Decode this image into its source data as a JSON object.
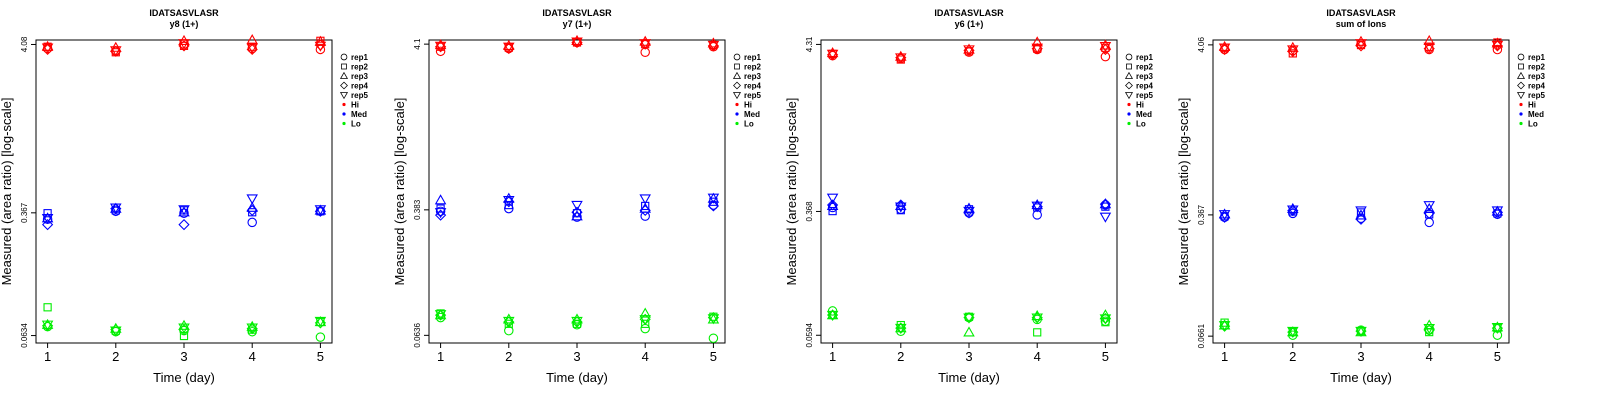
{
  "colors": {
    "Hi": "#ff0000",
    "Med": "#0000ff",
    "Lo": "#00ee00"
  },
  "legend": {
    "position": "right",
    "reps": [
      {
        "label": "rep1",
        "shape": "circle"
      },
      {
        "label": "rep2",
        "shape": "square"
      },
      {
        "label": "rep3",
        "shape": "triangle-up"
      },
      {
        "label": "rep4",
        "shape": "diamond"
      },
      {
        "label": "rep5",
        "shape": "triangle-down"
      }
    ],
    "levels": [
      {
        "label": "Hi",
        "color": "#ff0000"
      },
      {
        "label": "Med",
        "color": "#0000ff"
      },
      {
        "label": "Lo",
        "color": "#00ee00"
      }
    ]
  },
  "chart_data": [
    {
      "type": "scatter",
      "title": "IDATSASVLASR",
      "subtitle": "y8 (1+)",
      "xlabel": "Time (day)",
      "ylabel": "Measured (area ratio) [log-scale]",
      "yscale": "log",
      "x": [
        1,
        2,
        3,
        4,
        5
      ],
      "yticks": [
        "0.0634",
        "0.367",
        "4.08"
      ],
      "ylim": [
        0.057,
        4.35
      ],
      "grid": false,
      "series": [
        {
          "level": "Hi",
          "rep": "rep1",
          "values": [
            3.85,
            3.7,
            4.1,
            3.85,
            3.8
          ]
        },
        {
          "level": "Hi",
          "rep": "rep2",
          "values": [
            3.95,
            3.65,
            4.0,
            3.95,
            4.3
          ]
        },
        {
          "level": "Hi",
          "rep": "rep3",
          "values": [
            3.95,
            3.9,
            4.3,
            4.35,
            4.25
          ]
        },
        {
          "level": "Hi",
          "rep": "rep4",
          "values": [
            3.8,
            3.7,
            4.0,
            3.8,
            4.05
          ]
        },
        {
          "level": "Hi",
          "rep": "rep5",
          "values": [
            3.9,
            3.75,
            4.15,
            3.9,
            4.0
          ]
        },
        {
          "level": "Med",
          "rep": "rep1",
          "values": [
            0.335,
            0.375,
            0.365,
            0.32,
            0.375
          ]
        },
        {
          "level": "Med",
          "rep": "rep2",
          "values": [
            0.365,
            0.38,
            0.38,
            0.37,
            0.375
          ]
        },
        {
          "level": "Med",
          "rep": "rep3",
          "values": [
            0.34,
            0.39,
            0.37,
            0.395,
            0.38
          ]
        },
        {
          "level": "Med",
          "rep": "rep4",
          "values": [
            0.31,
            0.39,
            0.31,
            0.38,
            0.375
          ]
        },
        {
          "level": "Med",
          "rep": "rep5",
          "values": [
            0.34,
            0.395,
            0.385,
            0.45,
            0.385
          ]
        },
        {
          "level": "Lo",
          "rep": "rep1",
          "values": [
            0.072,
            0.067,
            0.068,
            0.067,
            0.062
          ]
        },
        {
          "level": "Lo",
          "rep": "rep2",
          "values": [
            0.095,
            0.068,
            0.063,
            0.069,
            0.077
          ]
        },
        {
          "level": "Lo",
          "rep": "rep3",
          "values": [
            0.074,
            0.07,
            0.073,
            0.072,
            0.077
          ]
        },
        {
          "level": "Lo",
          "rep": "rep4",
          "values": [
            0.073,
            0.069,
            0.069,
            0.07,
            0.076
          ]
        },
        {
          "level": "Lo",
          "rep": "rep5",
          "values": [
            0.074,
            0.068,
            0.071,
            0.071,
            0.078
          ]
        }
      ]
    },
    {
      "type": "scatter",
      "title": "IDATSASVLASR",
      "subtitle": "y7 (1+)",
      "xlabel": "Time (day)",
      "ylabel": "Measured (area ratio) [log-scale]",
      "yscale": "log",
      "x": [
        1,
        2,
        3,
        4,
        5
      ],
      "yticks": [
        "0.0636",
        "0.383",
        "4.1"
      ],
      "ylim": [
        0.057,
        4.35
      ],
      "grid": false,
      "series": [
        {
          "level": "Hi",
          "rep": "rep1",
          "values": [
            3.7,
            3.85,
            4.2,
            3.65,
            3.95
          ]
        },
        {
          "level": "Hi",
          "rep": "rep2",
          "values": [
            3.95,
            3.9,
            4.2,
            4.1,
            4.05
          ]
        },
        {
          "level": "Hi",
          "rep": "rep3",
          "values": [
            4.05,
            4.0,
            4.3,
            4.25,
            4.15
          ]
        },
        {
          "level": "Hi",
          "rep": "rep4",
          "values": [
            3.95,
            3.85,
            4.2,
            4.1,
            4.0
          ]
        },
        {
          "level": "Hi",
          "rep": "rep5",
          "values": [
            4.0,
            3.95,
            4.25,
            4.15,
            4.05
          ]
        },
        {
          "level": "Med",
          "rep": "rep1",
          "values": [
            0.375,
            0.39,
            0.345,
            0.35,
            0.41
          ]
        },
        {
          "level": "Med",
          "rep": "rep2",
          "values": [
            0.39,
            0.41,
            0.365,
            0.405,
            0.43
          ]
        },
        {
          "level": "Med",
          "rep": "rep3",
          "values": [
            0.44,
            0.45,
            0.35,
            0.39,
            0.45
          ]
        },
        {
          "level": "Med",
          "rep": "rep4",
          "values": [
            0.355,
            0.43,
            0.37,
            0.38,
            0.405
          ]
        },
        {
          "level": "Med",
          "rep": "rep5",
          "values": [
            0.37,
            0.44,
            0.41,
            0.45,
            0.455
          ]
        },
        {
          "level": "Lo",
          "rep": "rep1",
          "values": [
            0.082,
            0.068,
            0.074,
            0.07,
            0.061
          ]
        },
        {
          "level": "Lo",
          "rep": "rep2",
          "values": [
            0.087,
            0.075,
            0.075,
            0.075,
            0.083
          ]
        },
        {
          "level": "Lo",
          "rep": "rep3",
          "values": [
            0.085,
            0.08,
            0.08,
            0.087,
            0.08
          ]
        },
        {
          "level": "Lo",
          "rep": "rep4",
          "values": [
            0.085,
            0.077,
            0.077,
            0.08,
            0.082
          ]
        },
        {
          "level": "Lo",
          "rep": "rep5",
          "values": [
            0.086,
            0.078,
            0.078,
            0.08,
            0.081
          ]
        }
      ]
    },
    {
      "type": "scatter",
      "title": "IDATSASVLASR",
      "subtitle": "y6 (1+)",
      "xlabel": "Time (day)",
      "ylabel": "Measured (area ratio) [log-scale]",
      "yscale": "log",
      "x": [
        1,
        2,
        3,
        4,
        5
      ],
      "yticks": [
        "0.0594",
        "0.368",
        "4.31"
      ],
      "ylim": [
        0.053,
        4.6
      ],
      "grid": false,
      "series": [
        {
          "level": "Hi",
          "rep": "rep1",
          "values": [
            3.65,
            3.5,
            3.85,
            4.0,
            3.6
          ]
        },
        {
          "level": "Hi",
          "rep": "rep2",
          "values": [
            3.75,
            3.45,
            3.9,
            4.05,
            4.1
          ]
        },
        {
          "level": "Hi",
          "rep": "rep3",
          "values": [
            3.8,
            3.6,
            4.0,
            4.45,
            4.25
          ]
        },
        {
          "level": "Hi",
          "rep": "rep4",
          "values": [
            3.7,
            3.55,
            3.95,
            4.05,
            4.0
          ]
        },
        {
          "level": "Hi",
          "rep": "rep5",
          "values": [
            3.75,
            3.55,
            4.0,
            4.1,
            4.2
          ]
        },
        {
          "level": "Med",
          "rep": "rep1",
          "values": [
            0.39,
            0.38,
            0.36,
            0.35,
            0.405
          ]
        },
        {
          "level": "Med",
          "rep": "rep2",
          "values": [
            0.37,
            0.375,
            0.38,
            0.39,
            0.395
          ]
        },
        {
          "level": "Med",
          "rep": "rep3",
          "values": [
            0.4,
            0.4,
            0.385,
            0.405,
            0.41
          ]
        },
        {
          "level": "Med",
          "rep": "rep4",
          "values": [
            0.405,
            0.405,
            0.36,
            0.395,
            0.41
          ]
        },
        {
          "level": "Med",
          "rep": "rep5",
          "values": [
            0.45,
            0.395,
            0.37,
            0.4,
            0.34
          ]
        },
        {
          "level": "Lo",
          "rep": "rep1",
          "values": [
            0.085,
            0.063,
            0.077,
            0.075,
            0.073
          ]
        },
        {
          "level": "Lo",
          "rep": "rep2",
          "values": [
            0.08,
            0.069,
            0.078,
            0.062,
            0.072
          ]
        },
        {
          "level": "Lo",
          "rep": "rep3",
          "values": [
            0.08,
            0.066,
            0.062,
            0.079,
            0.08
          ]
        },
        {
          "level": "Lo",
          "rep": "rep4",
          "values": [
            0.08,
            0.066,
            0.077,
            0.077,
            0.076
          ]
        },
        {
          "level": "Lo",
          "rep": "rep5",
          "values": [
            0.08,
            0.066,
            0.077,
            0.077,
            0.076
          ]
        }
      ]
    },
    {
      "type": "scatter",
      "title": "IDATSASVLASR",
      "subtitle": "sum of Ions",
      "xlabel": "Time (day)",
      "ylabel": "Measured (area ratio) [log-scale]",
      "yscale": "log",
      "x": [
        1,
        2,
        3,
        4,
        5
      ],
      "yticks": [
        "0.0661",
        "0.367",
        "4.06"
      ],
      "ylim": [
        0.06,
        4.35
      ],
      "grid": false,
      "series": [
        {
          "level": "Hi",
          "rep": "rep1",
          "values": [
            3.8,
            3.75,
            4.1,
            3.8,
            3.8
          ]
        },
        {
          "level": "Hi",
          "rep": "rep2",
          "values": [
            3.9,
            3.6,
            4.05,
            3.95,
            4.2
          ]
        },
        {
          "level": "Hi",
          "rep": "rep3",
          "values": [
            3.95,
            3.9,
            4.25,
            4.3,
            4.15
          ]
        },
        {
          "level": "Hi",
          "rep": "rep4",
          "values": [
            3.8,
            3.7,
            4.0,
            3.85,
            4.0
          ]
        },
        {
          "level": "Hi",
          "rep": "rep5",
          "values": [
            3.9,
            3.8,
            4.15,
            3.95,
            4.05
          ]
        },
        {
          "level": "Med",
          "rep": "rep1",
          "values": [
            0.355,
            0.375,
            0.35,
            0.33,
            0.37
          ]
        },
        {
          "level": "Med",
          "rep": "rep2",
          "values": [
            0.36,
            0.385,
            0.38,
            0.37,
            0.375
          ]
        },
        {
          "level": "Med",
          "rep": "rep3",
          "values": [
            0.37,
            0.4,
            0.365,
            0.4,
            0.385
          ]
        },
        {
          "level": "Med",
          "rep": "rep4",
          "values": [
            0.355,
            0.39,
            0.345,
            0.375,
            0.38
          ]
        },
        {
          "level": "Med",
          "rep": "rep5",
          "values": [
            0.37,
            0.395,
            0.39,
            0.42,
            0.39
          ]
        },
        {
          "level": "Lo",
          "rep": "rep1",
          "values": [
            0.077,
            0.067,
            0.072,
            0.072,
            0.067
          ]
        },
        {
          "level": "Lo",
          "rep": "rep2",
          "values": [
            0.08,
            0.07,
            0.071,
            0.07,
            0.074
          ]
        },
        {
          "level": "Lo",
          "rep": "rep3",
          "values": [
            0.077,
            0.07,
            0.07,
            0.077,
            0.075
          ]
        },
        {
          "level": "Lo",
          "rep": "rep4",
          "values": [
            0.076,
            0.07,
            0.071,
            0.072,
            0.074
          ]
        },
        {
          "level": "Lo",
          "rep": "rep5",
          "values": [
            0.077,
            0.071,
            0.071,
            0.074,
            0.075
          ]
        }
      ]
    }
  ]
}
